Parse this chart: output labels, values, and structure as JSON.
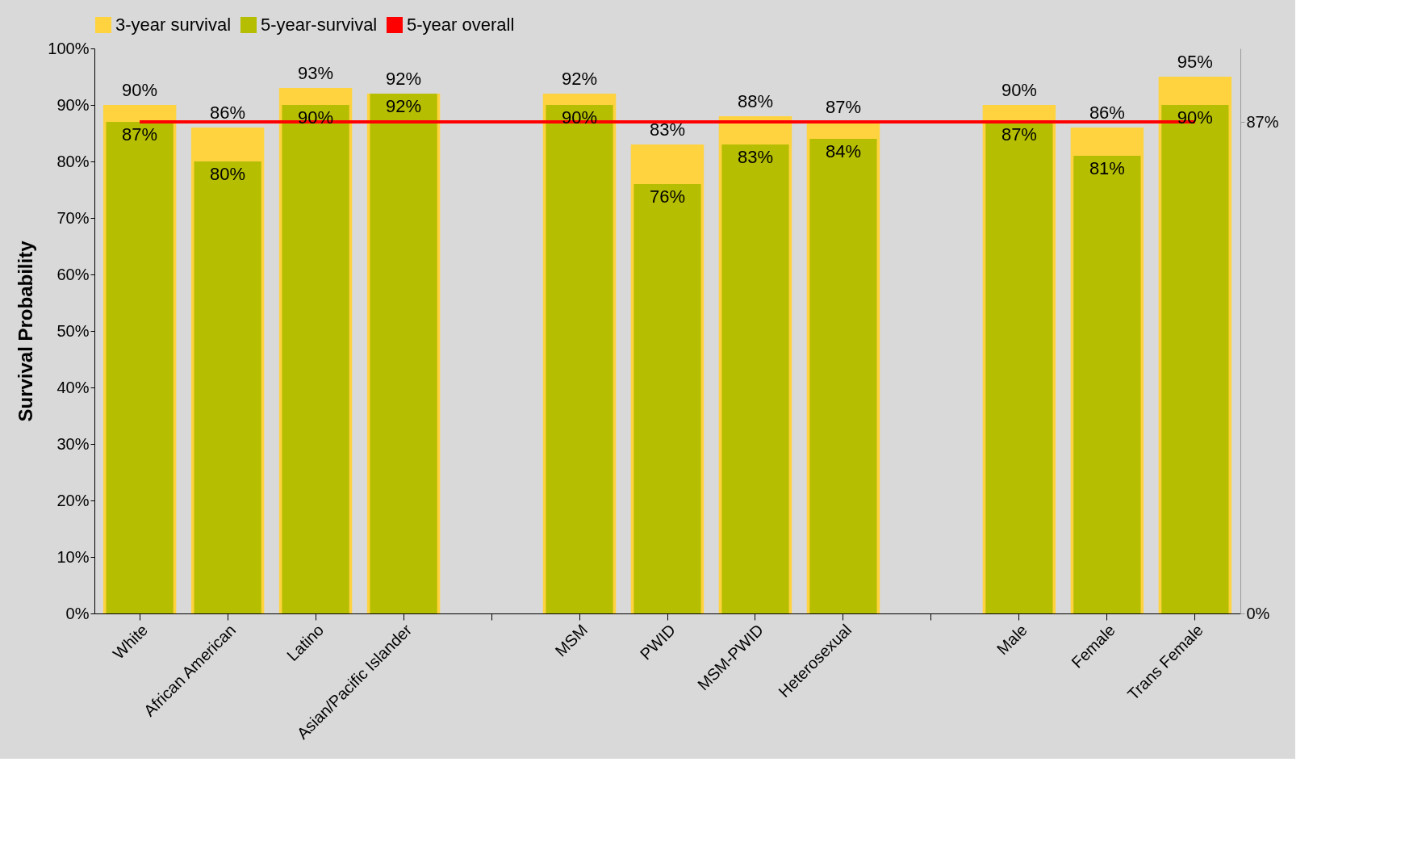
{
  "chart_data": {
    "type": "bar",
    "ylabel": "Survival Probability",
    "categories": [
      "White",
      "African American",
      "Latino",
      "Asian/Pacific Islander",
      null,
      "MSM",
      "PWID",
      "MSM-PWID",
      "Heterosexual",
      null,
      "Male",
      "Female",
      "Trans Female"
    ],
    "series": [
      {
        "name": "3-year survival",
        "color": "#ffd33f",
        "values": [
          90,
          86,
          93,
          92,
          null,
          92,
          83,
          88,
          87,
          null,
          90,
          86,
          95
        ],
        "value_labels": [
          "90%",
          "86%",
          "93%",
          "92%",
          null,
          "92%",
          "83%",
          "88%",
          "87%",
          null,
          "90%",
          "86%",
          "95%"
        ]
      },
      {
        "name": "5-year-survival",
        "color": "#b5be00",
        "values": [
          87,
          80,
          90,
          92,
          null,
          90,
          76,
          83,
          84,
          null,
          87,
          81,
          90
        ],
        "value_labels": [
          "87%",
          "80%",
          "90%",
          "92%",
          null,
          "90%",
          "76%",
          "83%",
          "84%",
          null,
          "87%",
          "81%",
          "90%"
        ]
      },
      {
        "name": "5-year overall",
        "type": "line",
        "axis": "y2",
        "color": "#ff0000",
        "values": [
          87,
          87,
          87,
          87,
          87,
          87,
          87,
          87,
          87,
          87,
          87,
          87,
          87
        ]
      }
    ],
    "ylim": [
      0,
      100
    ],
    "yticks": [
      {
        "value": 0,
        "label": "0%"
      },
      {
        "value": 10,
        "label": "10%"
      },
      {
        "value": 20,
        "label": "20%"
      },
      {
        "value": 30,
        "label": "30%"
      },
      {
        "value": 40,
        "label": "40%"
      },
      {
        "value": 50,
        "label": "50%"
      },
      {
        "value": 60,
        "label": "60%"
      },
      {
        "value": 70,
        "label": "70%"
      },
      {
        "value": 80,
        "label": "80%"
      },
      {
        "value": 90,
        "label": "90%"
      },
      {
        "value": 100,
        "label": "100%"
      }
    ],
    "y2lim": [
      0,
      100
    ],
    "y2ticks": [
      {
        "value": 0,
        "label": "0%"
      },
      {
        "value": 87,
        "label": "87%"
      }
    ],
    "legend": "top"
  }
}
